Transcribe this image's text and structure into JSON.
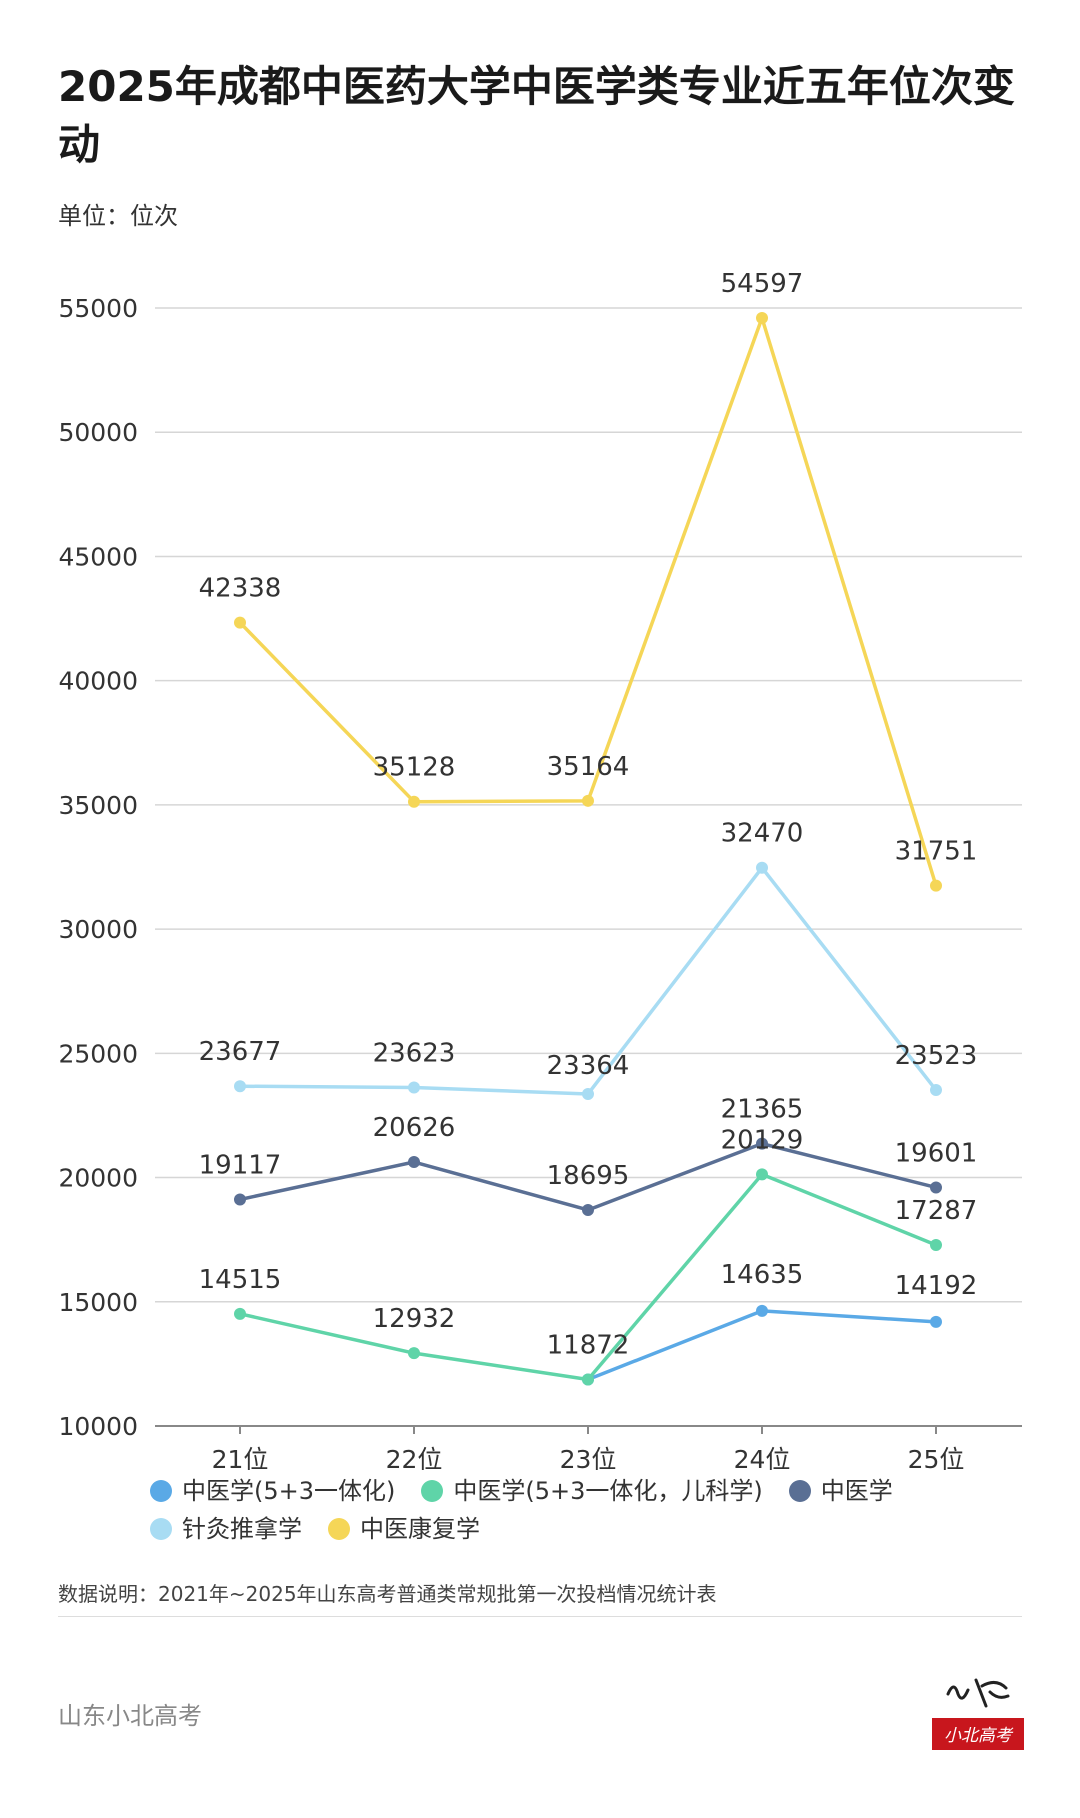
{
  "title": "2025年成都中医药大学中医学类专业近五年位次变动",
  "unit_label": "单位：位次",
  "source_note": "数据说明：2021年~2025年山东高考普通类常规批第一次投档情况统计表",
  "brand": "山东小北高考",
  "logo_text": "小北高考",
  "chart_data": {
    "type": "line",
    "categories": [
      "21位",
      "22位",
      "23位",
      "24位",
      "25位"
    ],
    "ylim": [
      10000,
      55000
    ],
    "yticks": [
      "10000",
      "15000",
      "20000",
      "25000",
      "30000",
      "35000",
      "40000",
      "45000",
      "50000",
      "55000"
    ],
    "grid": true,
    "legend_position": "bottom",
    "series": [
      {
        "name": "中医学(5+3一体化)",
        "color": "#5aa9e6",
        "values": [
          null,
          null,
          11872,
          14635,
          14192
        ],
        "labels": [
          "",
          "",
          "",
          "14635",
          "14192"
        ]
      },
      {
        "name": "中医学(5+3一体化，儿科学)",
        "color": "#5fd4a8",
        "values": [
          14515,
          12932,
          11872,
          20129,
          17287
        ],
        "labels": [
          "14515",
          "12932",
          "11872",
          "20129",
          "17287"
        ]
      },
      {
        "name": "中医学",
        "color": "#5a6f94",
        "values": [
          19117,
          20626,
          18695,
          21365,
          19601
        ],
        "labels": [
          "19117",
          "20626",
          "18695",
          "21365",
          "19601"
        ]
      },
      {
        "name": "针灸推拿学",
        "color": "#a8dcf3",
        "values": [
          23677,
          23623,
          23364,
          32470,
          23523
        ],
        "labels": [
          "23677",
          "23623",
          "23364",
          "32470",
          "23523"
        ]
      },
      {
        "name": "中医康复学",
        "color": "#f5d657",
        "values": [
          42338,
          35128,
          35164,
          54597,
          31751
        ],
        "labels": [
          "42338",
          "35128",
          "35164",
          "54597",
          "31751"
        ]
      }
    ]
  }
}
